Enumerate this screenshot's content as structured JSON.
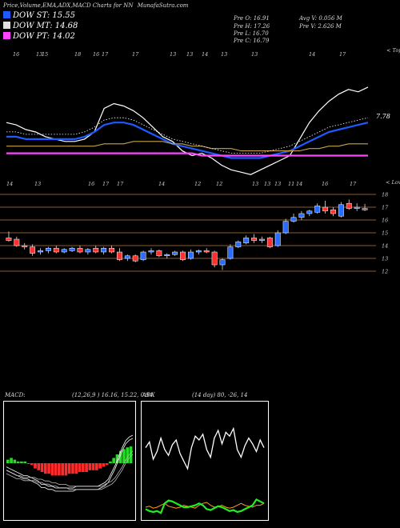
{
  "header": {
    "title": "Price,Volume,EMA,ADX,MACD Charts for NN",
    "site": "MunafaSutra.com"
  },
  "legend": [
    {
      "text": "DOW ST: 15.55",
      "color": "#1e5aff"
    },
    {
      "text": "DOW MT: 14.68",
      "color": "#e0e0e0"
    },
    {
      "text": "DOW PT: 14.02",
      "color": "#ff44ff"
    }
  ],
  "stats": {
    "open": "Pre O: 16.91",
    "high": "Pre H: 17.26",
    "low": "Pre L: 16.70",
    "close": "Pre C: 16.79",
    "avg_volume": "Avg V: 0.056 M",
    "prev_volume": "Pre V: 2.626 M"
  },
  "top_panel": {
    "corner_label": "< Tops",
    "top_ticks": [
      "16",
      "13",
      "15",
      "18",
      "16",
      "17",
      "17",
      "13",
      "13",
      "14",
      "13",
      "13",
      "14",
      "17"
    ],
    "bottom_ticks": [
      "14",
      "13",
      "16",
      "17",
      "17",
      "14",
      "12",
      "12",
      "13",
      "13",
      "13",
      "11",
      "14",
      "16",
      "17"
    ],
    "ema_value_label": "7.78"
  },
  "price_panel": {
    "corner_label": "< Lows",
    "y_labels": [
      "18",
      "17",
      "16",
      "15",
      "14",
      "13",
      "12"
    ]
  },
  "macd_panel": {
    "label": "MACD:",
    "values": "(12,26,9 ) 16.16, 15.22, 0.94"
  },
  "adx_panel": {
    "label": "ADX",
    "values": "(14 day) 80, -26, 14"
  },
  "chart_data": [
    {
      "type": "line",
      "title": "",
      "note": "Top panel: price (white) with EMA lines",
      "series": [
        {
          "values": [
            15.6,
            15.5,
            15.3,
            15.2,
            15.0,
            14.9,
            14.8,
            14.8,
            14.9,
            15.2,
            16.2,
            16.4,
            16.3,
            16.1,
            15.8,
            15.4,
            15.0,
            14.8,
            14.4,
            14.2,
            14.3,
            14.1,
            13.8,
            13.6,
            13.5,
            13.4,
            13.6,
            13.8,
            14.0,
            14.2,
            14.9,
            15.6,
            16.1,
            16.5,
            16.8,
            17.0,
            16.9,
            17.1
          ]
        },
        {
          "values": [
            15.0,
            15.0,
            14.9,
            14.9,
            14.9,
            14.9,
            14.9,
            14.9,
            15.0,
            15.2,
            15.5,
            15.6,
            15.6,
            15.5,
            15.3,
            15.1,
            14.9,
            14.7,
            14.6,
            14.5,
            14.4,
            14.3,
            14.2,
            14.1,
            14.1,
            14.1,
            14.1,
            14.2,
            14.3,
            14.4,
            14.6,
            14.8,
            15.0,
            15.2,
            15.3,
            15.4,
            15.5,
            15.6
          ]
        },
        {
          "values": [
            14.6,
            14.6,
            14.6,
            14.6,
            14.6,
            14.6,
            14.6,
            14.6,
            14.6,
            14.6,
            14.7,
            14.7,
            14.7,
            14.8,
            14.8,
            14.8,
            14.8,
            14.7,
            14.7,
            14.6,
            14.6,
            14.5,
            14.5,
            14.5,
            14.4,
            14.4,
            14.4,
            14.4,
            14.4,
            14.4,
            14.4,
            14.5,
            14.5,
            14.6,
            14.6,
            14.7,
            14.7,
            14.7
          ]
        },
        {
          "values": [
            14.3,
            14.3,
            14.3,
            14.3,
            14.3,
            14.3,
            14.3,
            14.3,
            14.3,
            14.3,
            14.3,
            14.3,
            14.3,
            14.3,
            14.3,
            14.3,
            14.3,
            14.3,
            14.3,
            14.3,
            14.2,
            14.2,
            14.2,
            14.2,
            14.2,
            14.2,
            14.2,
            14.2,
            14.2,
            14.2,
            14.2,
            14.2,
            14.2,
            14.2,
            14.2,
            14.2,
            14.2,
            14.2
          ]
        }
      ]
    },
    {
      "type": "candlestick",
      "title": "",
      "ylim": [
        11.5,
        18.5
      ],
      "candles": [
        {
          "o": 14.6,
          "h": 15.1,
          "l": 14.3,
          "c": 14.4,
          "up": false
        },
        {
          "o": 14.5,
          "h": 14.7,
          "l": 13.9,
          "c": 14.0,
          "up": false
        },
        {
          "o": 14.0,
          "h": 14.2,
          "l": 13.7,
          "c": 13.9,
          "up": false
        },
        {
          "o": 13.9,
          "h": 14.1,
          "l": 13.2,
          "c": 13.4,
          "up": false
        },
        {
          "o": 13.5,
          "h": 13.8,
          "l": 13.3,
          "c": 13.6,
          "up": true
        },
        {
          "o": 13.6,
          "h": 13.9,
          "l": 13.4,
          "c": 13.8,
          "up": true
        },
        {
          "o": 13.8,
          "h": 14.0,
          "l": 13.4,
          "c": 13.5,
          "up": false
        },
        {
          "o": 13.5,
          "h": 13.8,
          "l": 13.4,
          "c": 13.7,
          "up": true
        },
        {
          "o": 13.6,
          "h": 13.9,
          "l": 13.5,
          "c": 13.8,
          "up": true
        },
        {
          "o": 13.8,
          "h": 14.0,
          "l": 13.4,
          "c": 13.5,
          "up": false
        },
        {
          "o": 13.5,
          "h": 13.8,
          "l": 13.3,
          "c": 13.7,
          "up": true
        },
        {
          "o": 13.8,
          "h": 14.0,
          "l": 13.4,
          "c": 13.5,
          "up": false
        },
        {
          "o": 13.5,
          "h": 13.9,
          "l": 13.3,
          "c": 13.8,
          "up": true
        },
        {
          "o": 13.8,
          "h": 14.0,
          "l": 13.4,
          "c": 13.5,
          "up": false
        },
        {
          "o": 13.5,
          "h": 13.8,
          "l": 12.8,
          "c": 12.9,
          "up": false
        },
        {
          "o": 13.0,
          "h": 13.3,
          "l": 12.8,
          "c": 13.2,
          "up": true
        },
        {
          "o": 13.2,
          "h": 13.3,
          "l": 12.7,
          "c": 12.8,
          "up": false
        },
        {
          "o": 12.9,
          "h": 13.6,
          "l": 12.8,
          "c": 13.5,
          "up": true
        },
        {
          "o": 13.5,
          "h": 13.8,
          "l": 13.3,
          "c": 13.6,
          "up": true
        },
        {
          "o": 13.6,
          "h": 13.7,
          "l": 13.1,
          "c": 13.2,
          "up": false
        },
        {
          "o": 13.2,
          "h": 13.4,
          "l": 13.0,
          "c": 13.3,
          "up": true
        },
        {
          "o": 13.3,
          "h": 13.6,
          "l": 13.2,
          "c": 13.5,
          "up": true
        },
        {
          "o": 13.5,
          "h": 13.6,
          "l": 12.8,
          "c": 12.9,
          "up": false
        },
        {
          "o": 13.0,
          "h": 13.7,
          "l": 12.9,
          "c": 13.5,
          "up": true
        },
        {
          "o": 13.5,
          "h": 13.7,
          "l": 13.3,
          "c": 13.6,
          "up": true
        },
        {
          "o": 13.6,
          "h": 13.8,
          "l": 13.4,
          "c": 13.5,
          "up": false
        },
        {
          "o": 13.5,
          "h": 13.6,
          "l": 12.3,
          "c": 12.5,
          "up": false
        },
        {
          "o": 12.5,
          "h": 13.0,
          "l": 12.1,
          "c": 12.9,
          "up": true
        },
        {
          "o": 13.0,
          "h": 14.1,
          "l": 12.9,
          "c": 13.9,
          "up": true
        },
        {
          "o": 13.9,
          "h": 14.4,
          "l": 13.8,
          "c": 14.3,
          "up": true
        },
        {
          "o": 14.2,
          "h": 14.8,
          "l": 14.1,
          "c": 14.6,
          "up": true
        },
        {
          "o": 14.6,
          "h": 14.9,
          "l": 14.2,
          "c": 14.4,
          "up": false
        },
        {
          "o": 14.4,
          "h": 14.7,
          "l": 14.2,
          "c": 14.5,
          "up": true
        },
        {
          "o": 14.6,
          "h": 14.7,
          "l": 13.8,
          "c": 13.9,
          "up": false
        },
        {
          "o": 14.0,
          "h": 15.2,
          "l": 13.9,
          "c": 15.0,
          "up": true
        },
        {
          "o": 15.0,
          "h": 16.1,
          "l": 14.9,
          "c": 15.9,
          "up": true
        },
        {
          "o": 15.9,
          "h": 16.5,
          "l": 15.8,
          "c": 16.2,
          "up": true
        },
        {
          "o": 16.2,
          "h": 16.7,
          "l": 16.0,
          "c": 16.5,
          "up": true
        },
        {
          "o": 16.5,
          "h": 16.8,
          "l": 16.3,
          "c": 16.7,
          "up": true
        },
        {
          "o": 16.6,
          "h": 17.3,
          "l": 16.5,
          "c": 17.1,
          "up": true
        },
        {
          "o": 17.0,
          "h": 17.5,
          "l": 16.5,
          "c": 16.7,
          "up": false
        },
        {
          "o": 16.8,
          "h": 17.0,
          "l": 16.3,
          "c": 16.5,
          "up": false
        },
        {
          "o": 16.3,
          "h": 17.4,
          "l": 16.2,
          "c": 17.2,
          "up": true
        },
        {
          "o": 17.3,
          "h": 17.6,
          "l": 16.8,
          "c": 16.9,
          "up": false
        },
        {
          "o": 16.9,
          "h": 17.3,
          "l": 16.7,
          "c": 17.0,
          "up": true
        },
        {
          "o": 16.9,
          "h": 17.26,
          "l": 16.7,
          "c": 16.79,
          "up": false
        }
      ]
    },
    {
      "type": "bar",
      "title": "",
      "note": "MACD histogram with MACD and signal lines",
      "histogram": [
        0.2,
        0.3,
        0.2,
        0.1,
        0.1,
        0.1,
        0.0,
        -0.1,
        -0.3,
        -0.4,
        -0.5,
        -0.6,
        -0.6,
        -0.7,
        -0.7,
        -0.7,
        -0.7,
        -0.7,
        -0.6,
        -0.6,
        -0.6,
        -0.5,
        -0.5,
        -0.5,
        -0.4,
        -0.4,
        -0.4,
        -0.3,
        -0.2,
        -0.1,
        0.1,
        0.3,
        0.5,
        0.7,
        0.8,
        0.9,
        0.95
      ],
      "series": [
        {
          "values": [
            -0.3,
            -0.4,
            -0.5,
            -0.6,
            -0.7,
            -0.8,
            -0.8,
            -0.9,
            -1.0,
            -1.1,
            -1.3,
            -1.3,
            -1.4,
            -1.4,
            -1.5,
            -1.5,
            -1.5,
            -1.5,
            -1.5,
            -1.5,
            -1.4,
            -1.4,
            -1.4,
            -1.4,
            -1.4,
            -1.4,
            -1.4,
            -1.3,
            -1.2,
            -1.0,
            -0.6,
            -0.2,
            0.3,
            0.8,
            1.2,
            1.4,
            1.5
          ]
        },
        {
          "values": [
            -0.5,
            -0.6,
            -0.7,
            -0.8,
            -0.8,
            -0.9,
            -0.9,
            -0.9,
            -0.9,
            -1.0,
            -1.0,
            -1.1,
            -1.1,
            -1.2,
            -1.2,
            -1.3,
            -1.3,
            -1.3,
            -1.4,
            -1.4,
            -1.4,
            -1.4,
            -1.4,
            -1.4,
            -1.4,
            -1.4,
            -1.4,
            -1.4,
            -1.3,
            -1.2,
            -1.1,
            -0.9,
            -0.6,
            -0.3,
            0.1,
            0.4,
            0.6
          ]
        }
      ]
    },
    {
      "type": "line",
      "title": "",
      "ylim": [
        0,
        100
      ],
      "series": [
        {
          "values": [
            72,
            78,
            60,
            68,
            82,
            70,
            64,
            75,
            80,
            66,
            58,
            50,
            72,
            84,
            80,
            86,
            70,
            62,
            82,
            90,
            76,
            88,
            84,
            92,
            70,
            62,
            74,
            82,
            76,
            68,
            80,
            72
          ]
        },
        {
          "values": [
            10,
            11,
            9,
            10,
            12,
            14,
            11,
            10,
            9,
            10,
            12,
            11,
            10,
            9,
            12,
            14,
            15,
            12,
            10,
            11,
            12,
            10,
            9,
            10,
            12,
            14,
            12,
            11,
            10,
            12,
            12,
            14
          ]
        },
        {
          "values": [
            8,
            6,
            5,
            6,
            4,
            14,
            17,
            16,
            14,
            12,
            10,
            10,
            11,
            12,
            14,
            12,
            8,
            7,
            9,
            11,
            10,
            8,
            6,
            7,
            5,
            6,
            8,
            10,
            12,
            18,
            16,
            14
          ]
        }
      ]
    }
  ]
}
